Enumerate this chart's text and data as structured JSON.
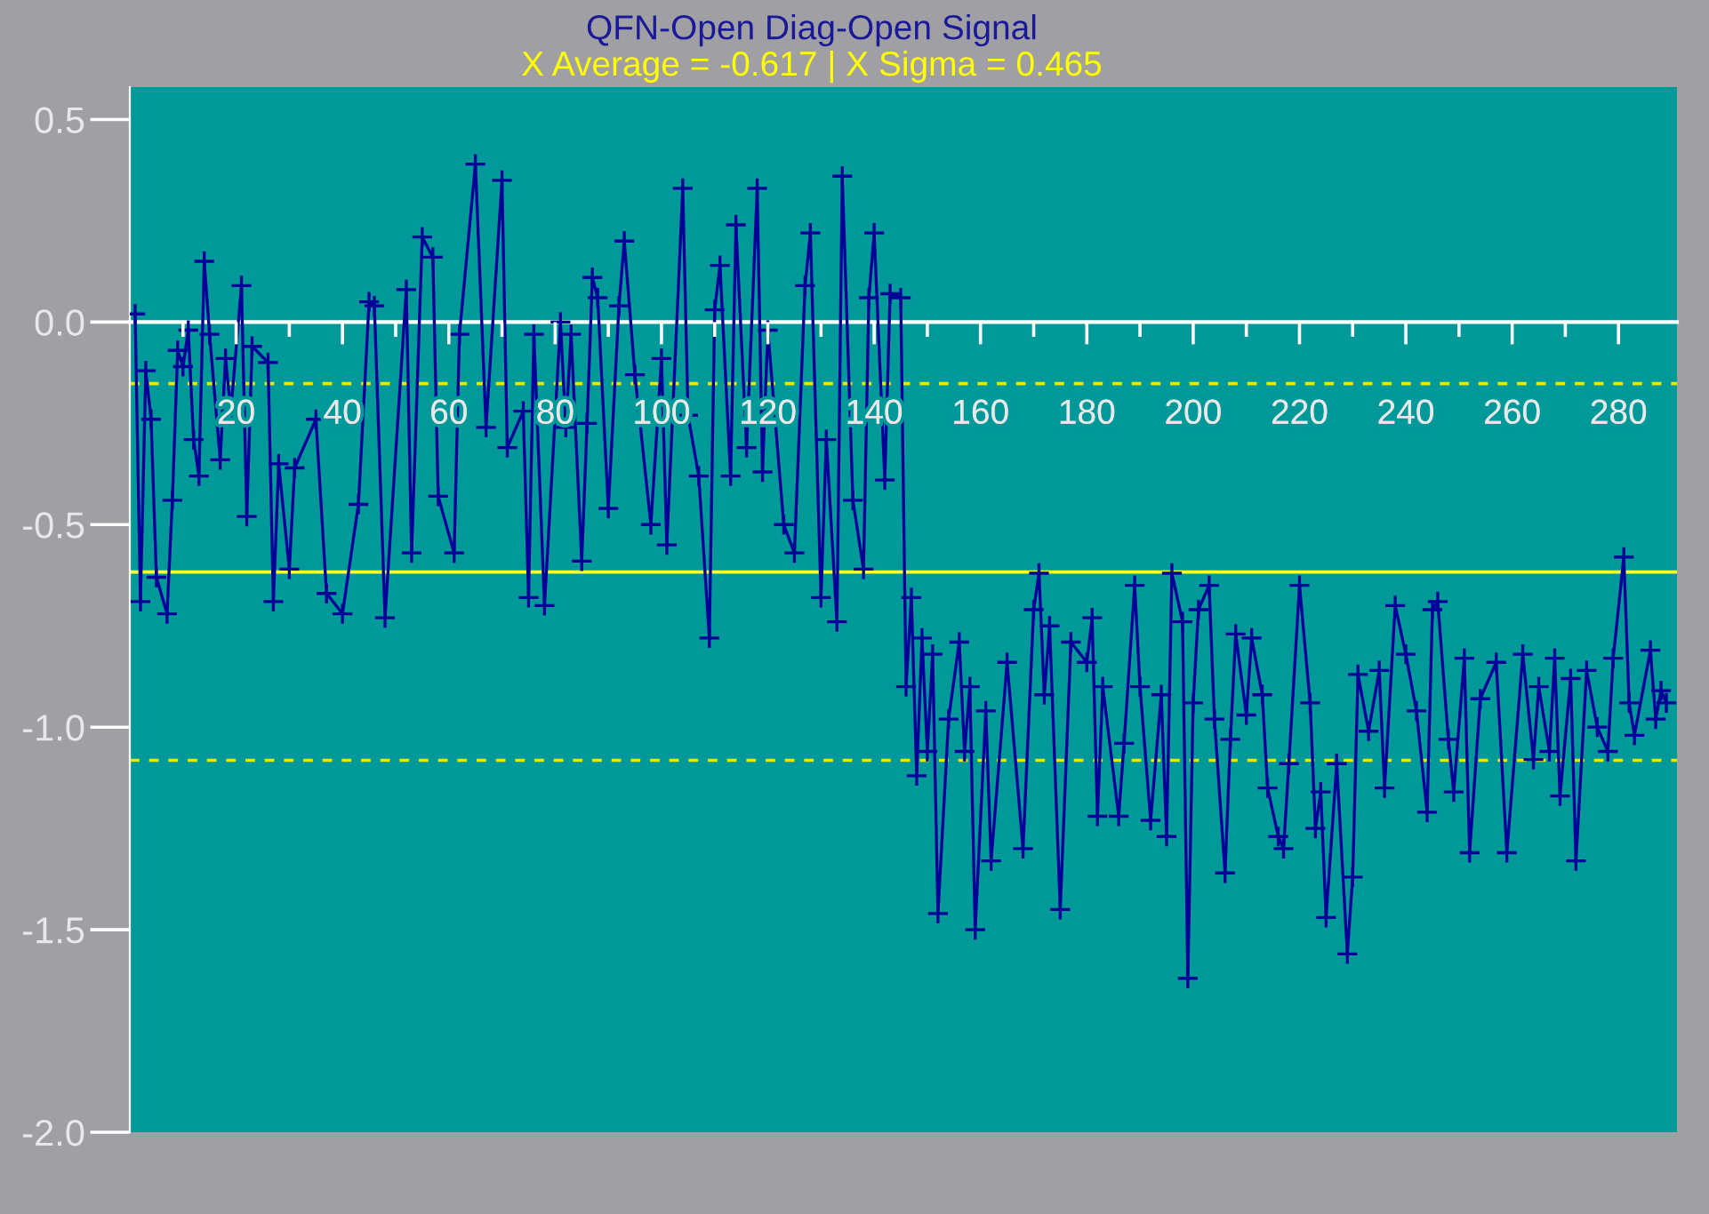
{
  "chart_data": {
    "type": "line",
    "title": "QFN-Open Diag-Open Signal",
    "subtitle": "X Average = -0.617 | X Sigma = 0.465",
    "series": [
      {
        "color": "#000099",
        "x": [
          1,
          2,
          3,
          4,
          5,
          7,
          8,
          9,
          10,
          11,
          12,
          13,
          14,
          15,
          17,
          18,
          19,
          21,
          22,
          23,
          26,
          27,
          28,
          30,
          31,
          35,
          37,
          40,
          43,
          45,
          46,
          48,
          52,
          53,
          55,
          57,
          58,
          61,
          62,
          65,
          67,
          70,
          71,
          74,
          75,
          76,
          78,
          81,
          82,
          83,
          85,
          86,
          87,
          88,
          90,
          92,
          93,
          95,
          98,
          100,
          101,
          104,
          105,
          107,
          109,
          110,
          111,
          113,
          114,
          116,
          118,
          119,
          120,
          123,
          125,
          127,
          128,
          130,
          131,
          133,
          134,
          136,
          138,
          139,
          140,
          142,
          143,
          145,
          146,
          147,
          148,
          149,
          150,
          151,
          152,
          154,
          156,
          157,
          158,
          159,
          161,
          162,
          165,
          168,
          170,
          171,
          172,
          173,
          175,
          177,
          180,
          181,
          182,
          183,
          186,
          187,
          189,
          190,
          192,
          194,
          195,
          196,
          198,
          199,
          200,
          201,
          203,
          204,
          206,
          207,
          208,
          210,
          211,
          213,
          214,
          216,
          217,
          218,
          220,
          222,
          223,
          224,
          225,
          227,
          229,
          230,
          231,
          233,
          235,
          236,
          238,
          240,
          242,
          244,
          245,
          246,
          248,
          249,
          251,
          252,
          254,
          257,
          259,
          262,
          264,
          265,
          267,
          268,
          269,
          271,
          272,
          274,
          276,
          278,
          279,
          281,
          282,
          283,
          286,
          287,
          288,
          289
        ],
        "values": [
          0.02,
          -0.69,
          -0.12,
          -0.24,
          -0.63,
          -0.72,
          -0.44,
          -0.07,
          -0.11,
          -0.02,
          -0.29,
          -0.38,
          0.15,
          -0.03,
          -0.34,
          -0.09,
          -0.22,
          0.09,
          -0.48,
          -0.06,
          -0.1,
          -0.69,
          -0.35,
          -0.61,
          -0.36,
          -0.24,
          -0.67,
          -0.72,
          -0.45,
          0.05,
          0.04,
          -0.73,
          0.08,
          -0.57,
          0.21,
          0.16,
          -0.43,
          -0.57,
          -0.03,
          0.39,
          -0.26,
          0.35,
          -0.31,
          -0.22,
          -0.68,
          -0.03,
          -0.7,
          0.0,
          -0.26,
          -0.03,
          -0.59,
          -0.25,
          0.11,
          0.06,
          -0.46,
          0.04,
          0.2,
          -0.13,
          -0.5,
          -0.09,
          -0.55,
          0.33,
          -0.23,
          -0.38,
          -0.78,
          0.03,
          0.14,
          -0.38,
          0.24,
          -0.31,
          0.33,
          -0.37,
          -0.02,
          -0.5,
          -0.57,
          0.09,
          0.22,
          -0.68,
          -0.29,
          -0.74,
          0.36,
          -0.44,
          -0.61,
          0.06,
          0.22,
          -0.39,
          0.07,
          0.06,
          -0.9,
          -0.68,
          -1.12,
          -0.78,
          -1.06,
          -0.82,
          -1.46,
          -0.98,
          -0.79,
          -1.06,
          -0.9,
          -1.5,
          -0.96,
          -1.33,
          -0.84,
          -1.3,
          -0.71,
          -0.62,
          -0.92,
          -0.75,
          -1.45,
          -0.79,
          -0.84,
          -0.73,
          -1.22,
          -0.9,
          -1.22,
          -1.04,
          -0.65,
          -0.9,
          -1.23,
          -0.92,
          -1.27,
          -0.62,
          -0.74,
          -1.62,
          -0.94,
          -0.71,
          -0.65,
          -0.98,
          -1.36,
          -1.03,
          -0.77,
          -0.97,
          -0.78,
          -0.92,
          -1.15,
          -1.27,
          -1.3,
          -1.09,
          -0.65,
          -0.94,
          -1.25,
          -1.16,
          -1.47,
          -1.09,
          -1.56,
          -1.37,
          -0.87,
          -1.01,
          -0.86,
          -1.15,
          -0.7,
          -0.82,
          -0.96,
          -1.21,
          -0.71,
          -0.69,
          -1.03,
          -1.16,
          -0.83,
          -1.31,
          -0.93,
          -0.84,
          -1.31,
          -0.82,
          -1.08,
          -0.9,
          -1.06,
          -0.83,
          -1.17,
          -0.88,
          -1.33,
          -0.86,
          -1.0,
          -1.06,
          -0.83,
          -0.58,
          -0.94,
          -1.02,
          -0.81,
          -0.98,
          -0.91,
          -0.94
        ]
      }
    ],
    "xlim": [
      0,
      291
    ],
    "ylim": [
      -2.0,
      0.58
    ],
    "xticks": [
      {
        "value": 10,
        "label": null
      },
      20,
      {
        "value": 30,
        "label": null
      },
      40,
      {
        "value": 50,
        "label": null
      },
      60,
      {
        "value": 70,
        "label": null
      },
      80,
      {
        "value": 90,
        "label": null
      },
      100,
      {
        "value": 110,
        "label": null
      },
      120,
      {
        "value": 130,
        "label": null
      },
      140,
      {
        "value": 150,
        "label": null
      },
      160,
      {
        "value": 170,
        "label": null
      },
      180,
      {
        "value": 190,
        "label": null
      },
      200,
      {
        "value": 210,
        "label": null
      },
      220,
      {
        "value": 230,
        "label": null
      },
      240,
      {
        "value": 250,
        "label": null
      },
      260,
      {
        "value": 270,
        "label": null
      },
      280
    ],
    "yticks": [
      {
        "value": -2.0,
        "label": "-2.0"
      },
      {
        "value": -1.5,
        "label": "-1.5"
      },
      {
        "value": -1.0,
        "label": "-1.0"
      },
      {
        "value": -0.5,
        "label": "-0.5"
      },
      {
        "value": 0.0,
        "label": "0.0"
      },
      {
        "value": 0.5,
        "label": "0.5"
      }
    ],
    "marker": "cross",
    "line_style": "solid",
    "ref_lines": [
      {
        "axis": "y",
        "value": -0.617,
        "color": "#ffff33",
        "line_style": "solid"
      },
      {
        "axis": "y",
        "value": -0.152,
        "color": "#e8e800",
        "line_style": "dashed"
      },
      {
        "axis": "y",
        "value": -1.082,
        "color": "#e8e800",
        "line_style": "dashed"
      }
    ],
    "grid": false,
    "legend": false
  }
}
